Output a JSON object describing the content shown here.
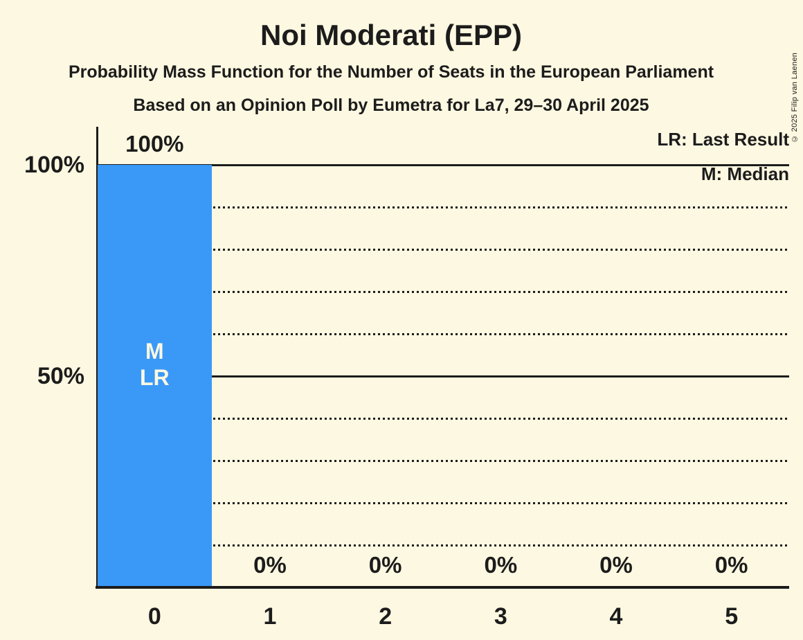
{
  "title": "Noi Moderati (EPP)",
  "subtitles": [
    "Probability Mass Function for the Number of Seats in the European Parliament",
    "Based on an Opinion Poll by Eumetra for La7, 29–30 April 2025"
  ],
  "copyright": "© 2025 Filip van Laenen",
  "legend": {
    "last_result": "LR: Last Result",
    "median": "M: Median"
  },
  "y_axis": {
    "label_100": "100%",
    "label_50": "50%"
  },
  "colors": {
    "background": "#FDF8E1",
    "bar": "#3A99F7",
    "text": "#1C1C1C",
    "bar_text": "#FDF8E1"
  },
  "chart_data": {
    "type": "bar",
    "title": "Noi Moderati (EPP)",
    "categories": [
      "0",
      "1",
      "2",
      "3",
      "4",
      "5"
    ],
    "values": [
      100,
      0,
      0,
      0,
      0,
      0
    ],
    "value_labels": [
      "100%",
      "0%",
      "0%",
      "0%",
      "0%",
      "0%"
    ],
    "ylim": [
      0,
      100
    ],
    "grid": "horizontal-only",
    "legend_position": "top-right",
    "gridlines": {
      "solid_percent": [
        50,
        100
      ],
      "dotted_percent": [
        10,
        20,
        30,
        40,
        60,
        70,
        80,
        90
      ]
    },
    "annotations": [
      {
        "category": "0",
        "lines": [
          "M",
          "LR"
        ]
      }
    ]
  }
}
